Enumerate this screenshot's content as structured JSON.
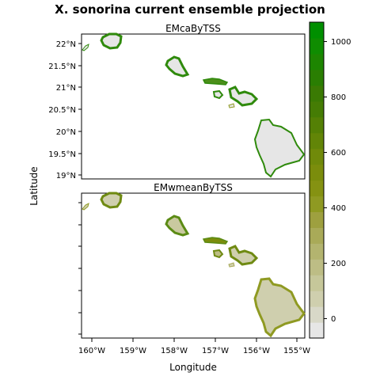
{
  "title": "X. sonorina current ensemble projection",
  "xlabel": "Longitude",
  "ylabel": "Latitude",
  "panels": [
    {
      "title": "EMcaByTSS"
    },
    {
      "title": "EMwmeanByTSS"
    }
  ],
  "lat_ticks": [
    "22°N",
    "21.5°N",
    "21°N",
    "20.5°N",
    "20°N",
    "19.5°N",
    "19°N"
  ],
  "lon_ticks": [
    "160°W",
    "159°W",
    "158°W",
    "157°W",
    "156°W",
    "155°W"
  ],
  "colorbar": {
    "ticks": [
      "0",
      "200",
      "400",
      "600",
      "800",
      "1000"
    ],
    "range": [
      -70,
      1070
    ],
    "colors": [
      "#e6e6e6",
      "#d8d8c8",
      "#cfcfae",
      "#c6c79a",
      "#bdbd85",
      "#b3b46f",
      "#a9aa58",
      "#9ea03f",
      "#8f9a22",
      "#859212",
      "#7b8d0c",
      "#708a0a",
      "#628507",
      "#548005",
      "#457c04",
      "#3a7a03",
      "#2a7e02",
      "#1d8501",
      "#0f8c01",
      "#008f00"
    ]
  },
  "colors": {
    "high_suitability": "#2f8a0c",
    "medium_suitability": "#8f9a22",
    "low_suitability": "#cfcfae",
    "unsuitable": "#e6e6e6"
  }
}
